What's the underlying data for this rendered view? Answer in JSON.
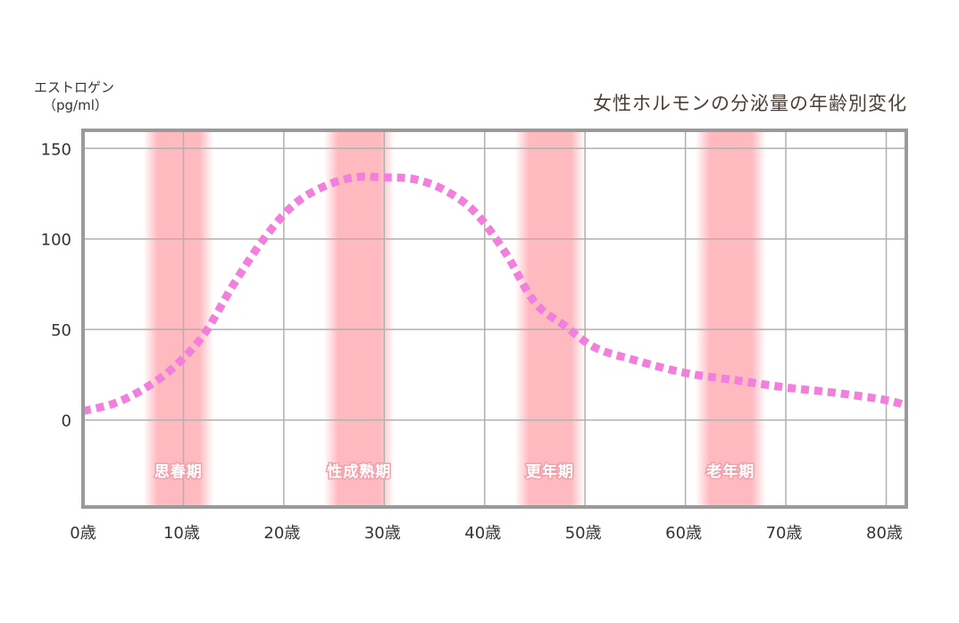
{
  "chart_data": {
    "type": "line",
    "title": "女性ホルモンの分泌量の年齢別変化",
    "ylabel": "エストロゲン",
    "ylabel_unit": "（pg/ml）",
    "xlabel": "",
    "x_tick_labels": [
      "0歳",
      "10歳",
      "20歳",
      "30歳",
      "40歳",
      "50歳",
      "60歳",
      "70歳",
      "80歳"
    ],
    "x_ticks": [
      0,
      10,
      20,
      30,
      40,
      50,
      60,
      70,
      80
    ],
    "y_tick_labels": [
      "0",
      "50",
      "100",
      "150"
    ],
    "y_ticks": [
      0,
      50,
      100,
      150
    ],
    "xlim": [
      0,
      82
    ],
    "ylim": [
      -48,
      160
    ],
    "grid": true,
    "series": [
      {
        "x": [
          0,
          3,
          6,
          9,
          12,
          15,
          18,
          21,
          24,
          27,
          30,
          33,
          36,
          39,
          42,
          45,
          48,
          51,
          55,
          60,
          65,
          70,
          75,
          80,
          82
        ],
        "values": [
          5,
          9,
          17,
          29,
          47,
          75,
          100,
          119,
          129,
          134,
          134,
          133,
          127,
          115,
          93,
          65,
          52,
          40,
          33,
          26,
          22,
          18,
          15,
          11,
          8
        ]
      }
    ],
    "bands": [
      {
        "label": "思春期",
        "x_range": [
          6,
          13
        ]
      },
      {
        "label": "性成熟期",
        "x_range": [
          24,
          31
        ]
      },
      {
        "label": "更年期",
        "x_range": [
          43,
          50
        ]
      },
      {
        "label": "老年期",
        "x_range": [
          61,
          68
        ]
      }
    ],
    "colors": {
      "line": "#f27fdc",
      "band": "#ffb6bd",
      "grid": "#b0b0b0",
      "frame": "#9a9a9a",
      "band_label_stroke": "#f2a0aa"
    }
  }
}
